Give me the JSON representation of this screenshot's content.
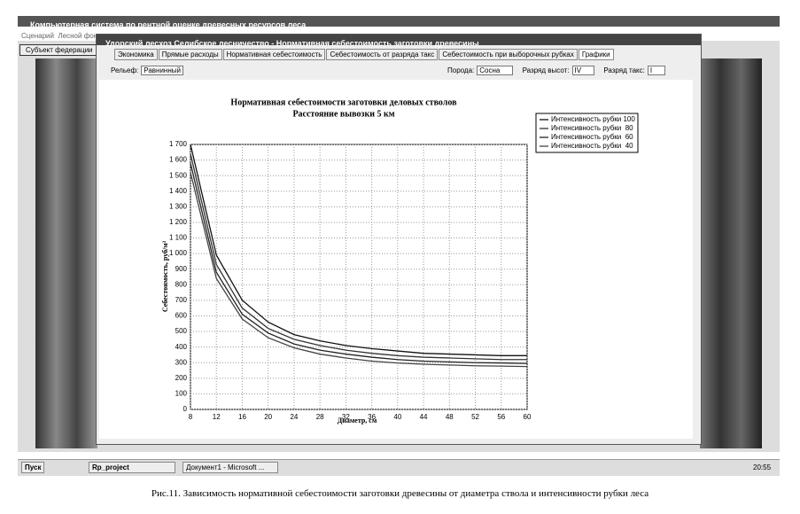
{
  "app_title": "Компьютерная система по рентной оценке древесных ресурсов леса",
  "menu": [
    "Сценарий",
    "Лесной фон"
  ],
  "left_button": "Субъект федерации",
  "window_title": "Удорский лесхоз Селибское лесничество - Нормативная себестоимость заготовки древесины",
  "tabs": [
    "Экономика",
    "Прямые расходы",
    "Нормативная себестоимость",
    "Себестоимость от разряда такс",
    "Себестоимость при выборочных рубках",
    "Графики"
  ],
  "filters": {
    "relief_label": "Рельеф:",
    "relief": "Равнинный",
    "species_label": "Порода:",
    "species": "Сосна",
    "height_label": "Разряд высот:",
    "height": "IV",
    "tax_label": "Разряд такс:",
    "tax": "I"
  },
  "taskbar": {
    "start": "Пуск",
    "tasks": [
      "Rp_project",
      "Документ1 - Microsoft ..."
    ],
    "clock": "20:55"
  },
  "caption": "Рис.11. Зависимость нормативной себестоимости заготовки древесины от диаметра ствола и интенсивности рубки леса",
  "chart_data": {
    "type": "line",
    "title": "Нормативная себестоимости заготовки деловых стволов",
    "subtitle": "Расстояние вывозки 5 км",
    "x_label": "Диаметр, см",
    "y_label": "Себестоимость, руб/м³",
    "x": [
      8,
      12,
      16,
      20,
      24,
      28,
      32,
      36,
      40,
      44,
      48,
      52,
      56,
      60
    ],
    "series": [
      {
        "name": "Интенсивность рубки 100",
        "color": "#111111",
        "values": [
          1700,
          990,
          700,
          560,
          480,
          440,
          410,
          390,
          375,
          360,
          355,
          350,
          345,
          345
        ]
      },
      {
        "name": "Интенсивность рубки  80",
        "color": "#333333",
        "values": [
          1640,
          930,
          650,
          520,
          450,
          410,
          380,
          360,
          345,
          335,
          330,
          325,
          320,
          320
        ]
      },
      {
        "name": "Интенсивность рубки  60",
        "color": "#222222",
        "values": [
          1580,
          880,
          610,
          490,
          420,
          380,
          355,
          335,
          320,
          310,
          305,
          300,
          298,
          295
        ]
      },
      {
        "name": "Интенсивность рубки  40",
        "color": "#444444",
        "values": [
          1520,
          840,
          580,
          460,
          395,
          355,
          330,
          310,
          298,
          290,
          285,
          280,
          278,
          275
        ]
      }
    ],
    "xlim": [
      8,
      60
    ],
    "xticks": [
      8,
      12,
      16,
      20,
      24,
      28,
      32,
      36,
      40,
      44,
      48,
      52,
      56,
      60
    ],
    "ylim": [
      0,
      1700
    ],
    "yticks": [
      0,
      100,
      200,
      300,
      400,
      500,
      600,
      700,
      800,
      900,
      {
        "value": 1000,
        "label": "1 000"
      },
      {
        "value": 1100,
        "label": "1 100"
      },
      {
        "value": 1200,
        "label": "1 200"
      },
      {
        "value": 1300,
        "label": "1 300"
      },
      {
        "value": 1400,
        "label": "1 400"
      },
      {
        "value": 1500,
        "label": "1 500"
      },
      {
        "value": 1600,
        "label": "1 600"
      },
      {
        "value": 1700,
        "label": "1 700"
      }
    ],
    "grid": true,
    "legend": "top-right"
  }
}
